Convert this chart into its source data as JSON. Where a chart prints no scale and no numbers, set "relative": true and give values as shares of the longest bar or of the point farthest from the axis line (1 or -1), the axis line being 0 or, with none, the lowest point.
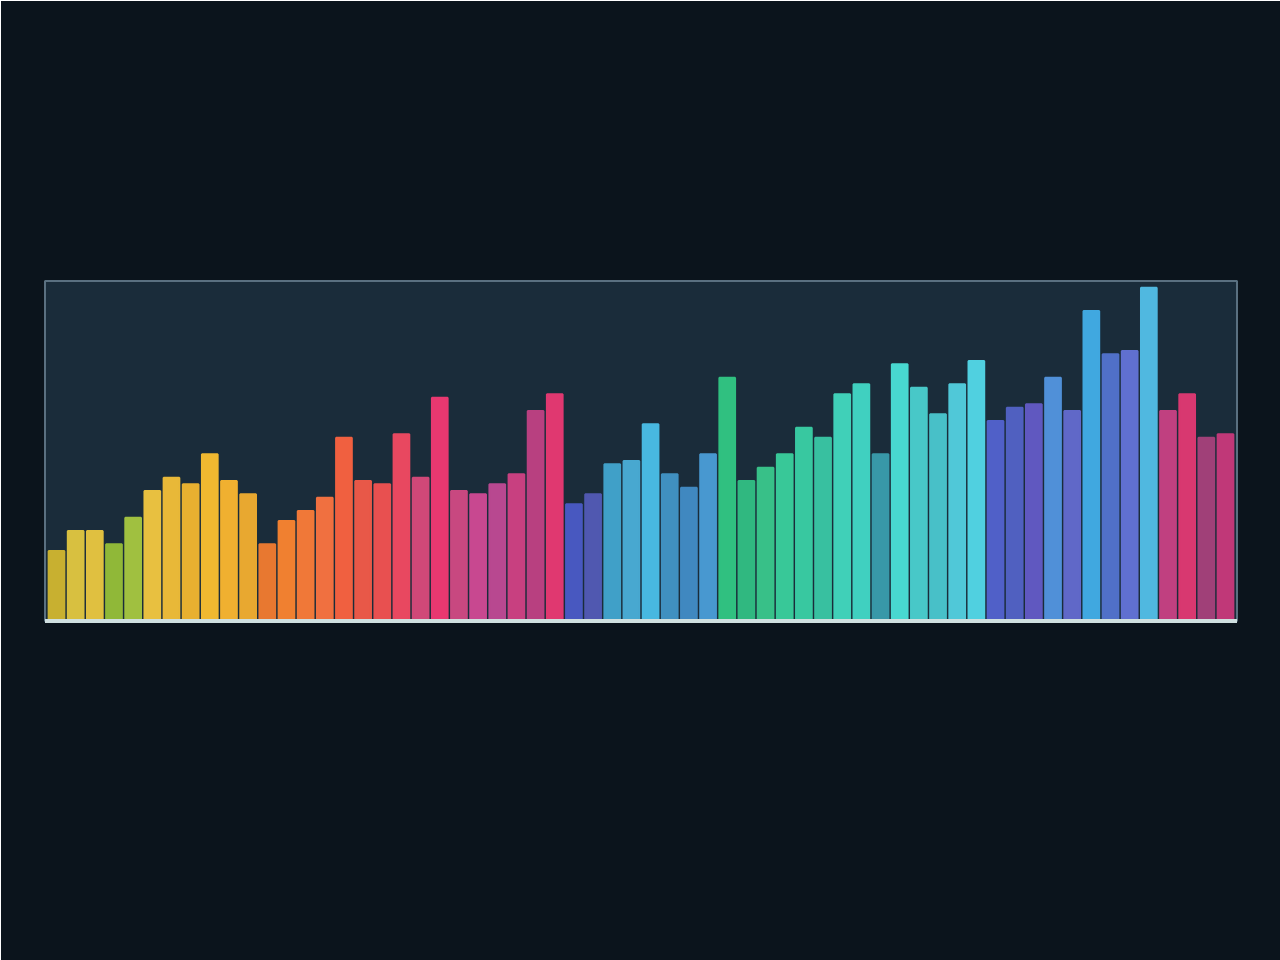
{
  "chart_data": {
    "type": "bar",
    "relative": true,
    "categories": [
      null,
      null,
      null,
      null,
      null,
      null,
      null,
      null,
      null,
      null,
      null,
      null,
      null,
      null,
      null,
      null,
      null,
      null,
      null,
      null,
      null,
      null,
      null,
      null,
      null,
      null,
      null,
      null,
      null,
      null,
      null,
      null,
      null,
      null,
      null,
      null,
      null,
      null,
      null,
      null,
      null,
      null,
      null,
      null,
      null,
      null,
      null,
      null,
      null,
      null,
      null,
      null,
      null,
      null,
      null,
      null,
      null,
      null,
      null,
      null,
      null,
      null
    ],
    "values": [
      0.21,
      0.27,
      0.27,
      0.23,
      0.31,
      0.39,
      0.43,
      0.41,
      0.5,
      0.42,
      0.38,
      0.23,
      0.3,
      0.33,
      0.37,
      0.55,
      0.42,
      0.41,
      0.56,
      0.43,
      0.67,
      0.39,
      0.38,
      0.41,
      0.44,
      0.63,
      0.68,
      0.35,
      0.38,
      0.47,
      0.48,
      0.59,
      0.44,
      0.4,
      0.5,
      0.73,
      0.42,
      0.46,
      0.5,
      0.58,
      0.55,
      0.68,
      0.71,
      0.5,
      0.77,
      0.7,
      0.62,
      0.71,
      0.78,
      0.6,
      0.64,
      0.65,
      0.73,
      0.63,
      0.93,
      0.8,
      0.81,
      1,
      0.63,
      0.68,
      0.55,
      0.56
    ],
    "colors": [
      "#c8b030",
      "#d8c040",
      "#e0c040",
      "#90b838",
      "#a0c040",
      "#e8c040",
      "#e8b838",
      "#e8b030",
      "#f0b830",
      "#f0b030",
      "#e8a830",
      "#e87830",
      "#f08030",
      "#f07838",
      "#f07040",
      "#f06040",
      "#e85848",
      "#e85050",
      "#e84860",
      "#d04878",
      "#e83870",
      "#c84880",
      "#c84890",
      "#b84890",
      "#c84080",
      "#b84080",
      "#e03870",
      "#4858c0",
      "#5058b0",
      "#40a0c8",
      "#48a8d0",
      "#48b8e0",
      "#4090c0",
      "#4088c0",
      "#4898d0",
      "#30c080",
      "#30b880",
      "#38c088",
      "#38c898",
      "#38c8a0",
      "#38c0a0",
      "#40d0b8",
      "#40d0c0",
      "#3898a8",
      "#48d8d0",
      "#48c8c8",
      "#48c0c8",
      "#50c8d8",
      "#50d0e0",
      "#5060c8",
      "#5060c0",
      "#6058c0",
      "#5090d8",
      "#6068c8",
      "#40a8e0",
      "#5070c8",
      "#6070d0",
      "#50b8e0",
      "#c04080",
      "#d83870",
      "#a04078",
      "#c03878"
    ]
  }
}
